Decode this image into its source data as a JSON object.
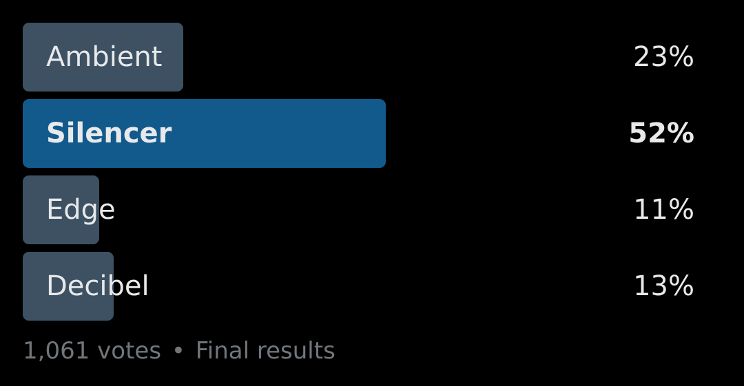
{
  "poll": {
    "options": [
      {
        "label": "Ambient",
        "percent_text": "23%",
        "percent": 23,
        "winner": false
      },
      {
        "label": "Silencer",
        "percent_text": "52%",
        "percent": 52,
        "winner": true
      },
      {
        "label": "Edge",
        "percent_text": "11%",
        "percent": 11,
        "winner": false
      },
      {
        "label": "Decibel",
        "percent_text": "13%",
        "percent": 13,
        "winner": false
      }
    ],
    "votes": "1,061 votes",
    "separator": "•",
    "status": "Final results"
  },
  "colors": {
    "background": "#000000",
    "bar": "#3d5163",
    "winner_bar": "#135a8c",
    "text": "#e7e9ea",
    "muted_text": "#71767b"
  }
}
